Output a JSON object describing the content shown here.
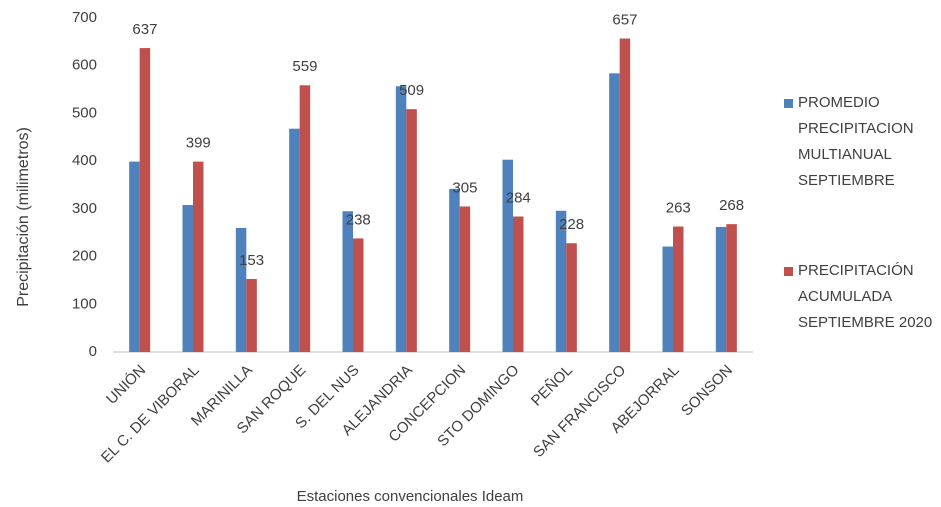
{
  "chart_data": {
    "type": "bar",
    "x_label": "Estaciones convencionales Ideam",
    "y_label": "Precipitación (milimetros)",
    "categories": [
      "UNIÓN",
      "EL C. DE VIBORAL",
      "MARINILLA",
      "SAN ROQUE",
      "S. DEL NUS",
      "ALEJANDRIA",
      "CONCEPCION",
      "STO DOMINGO",
      "PEÑOL",
      "SAN FRANCISCO",
      "ABEJORRAL",
      "SONSON"
    ],
    "series": [
      {
        "name": "PROMEDIO PRECIPITACION MULTIANUAL SEPTIEMBRE",
        "color": "#4f81bd",
        "show_values": false,
        "values": [
          399,
          308,
          260,
          468,
          295,
          557,
          342,
          403,
          296,
          584,
          221,
          262
        ]
      },
      {
        "name": "PRECIPITACIÓN ACUMULADA SEPTIEMBRE 2020",
        "color": "#c0504d",
        "show_values": true,
        "values": [
          637,
          399,
          153,
          559,
          238,
          509,
          305,
          284,
          228,
          657,
          263,
          268
        ]
      }
    ],
    "ylim": [
      0,
      700
    ],
    "yticks": [
      0,
      100,
      200,
      300,
      400,
      500,
      600,
      700
    ],
    "grid": false,
    "legend": "right"
  }
}
